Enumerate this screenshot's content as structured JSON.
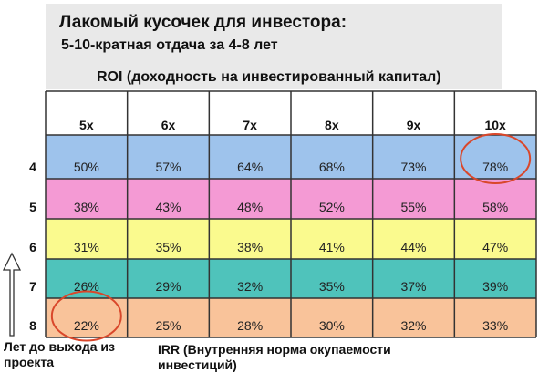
{
  "header": {
    "title": "Лакомый кусочек для инвестора:",
    "subtitle": "5-10-кратная отдача за 4-8 лет",
    "roi_label": "ROI (доходность на инвестированный капитал)"
  },
  "footer": {
    "years_label": "Лет до выхода из проекта",
    "irr_label": "IRR (Внутренняя норма окупаемости инвестиций)"
  },
  "colors": {
    "header_band": "#e9e9e9",
    "grid_line": "#333333",
    "circle": "#d9472b",
    "row_4": "#9ec3ec",
    "row_5": "#f49ad4",
    "row_6": "#fafa8e",
    "row_7": "#4fc3bb",
    "row_8": "#f9c39a"
  },
  "chart_data": {
    "type": "table",
    "columns": [
      "5x",
      "6x",
      "7x",
      "8x",
      "9x",
      "10x"
    ],
    "rows": [
      {
        "label": "4",
        "color": "#9ec3ec",
        "values": [
          "50%",
          "57%",
          "64%",
          "68%",
          "73%",
          "78%"
        ]
      },
      {
        "label": "5",
        "color": "#f49ad4",
        "values": [
          "38%",
          "43%",
          "48%",
          "52%",
          "55%",
          "58%"
        ]
      },
      {
        "label": "6",
        "color": "#fafa8e",
        "values": [
          "31%",
          "35%",
          "38%",
          "41%",
          "44%",
          "47%"
        ]
      },
      {
        "label": "7",
        "color": "#4fc3bb",
        "values": [
          "26%",
          "29%",
          "32%",
          "35%",
          "37%",
          "39%"
        ]
      },
      {
        "label": "8",
        "color": "#f9c39a",
        "values": [
          "22%",
          "25%",
          "28%",
          "30%",
          "32%",
          "33%"
        ]
      }
    ],
    "highlighted_cells": [
      {
        "row": "4",
        "column": "10x",
        "value": "78%"
      },
      {
        "row": "8",
        "column": "5x",
        "value": "22%"
      }
    ]
  }
}
